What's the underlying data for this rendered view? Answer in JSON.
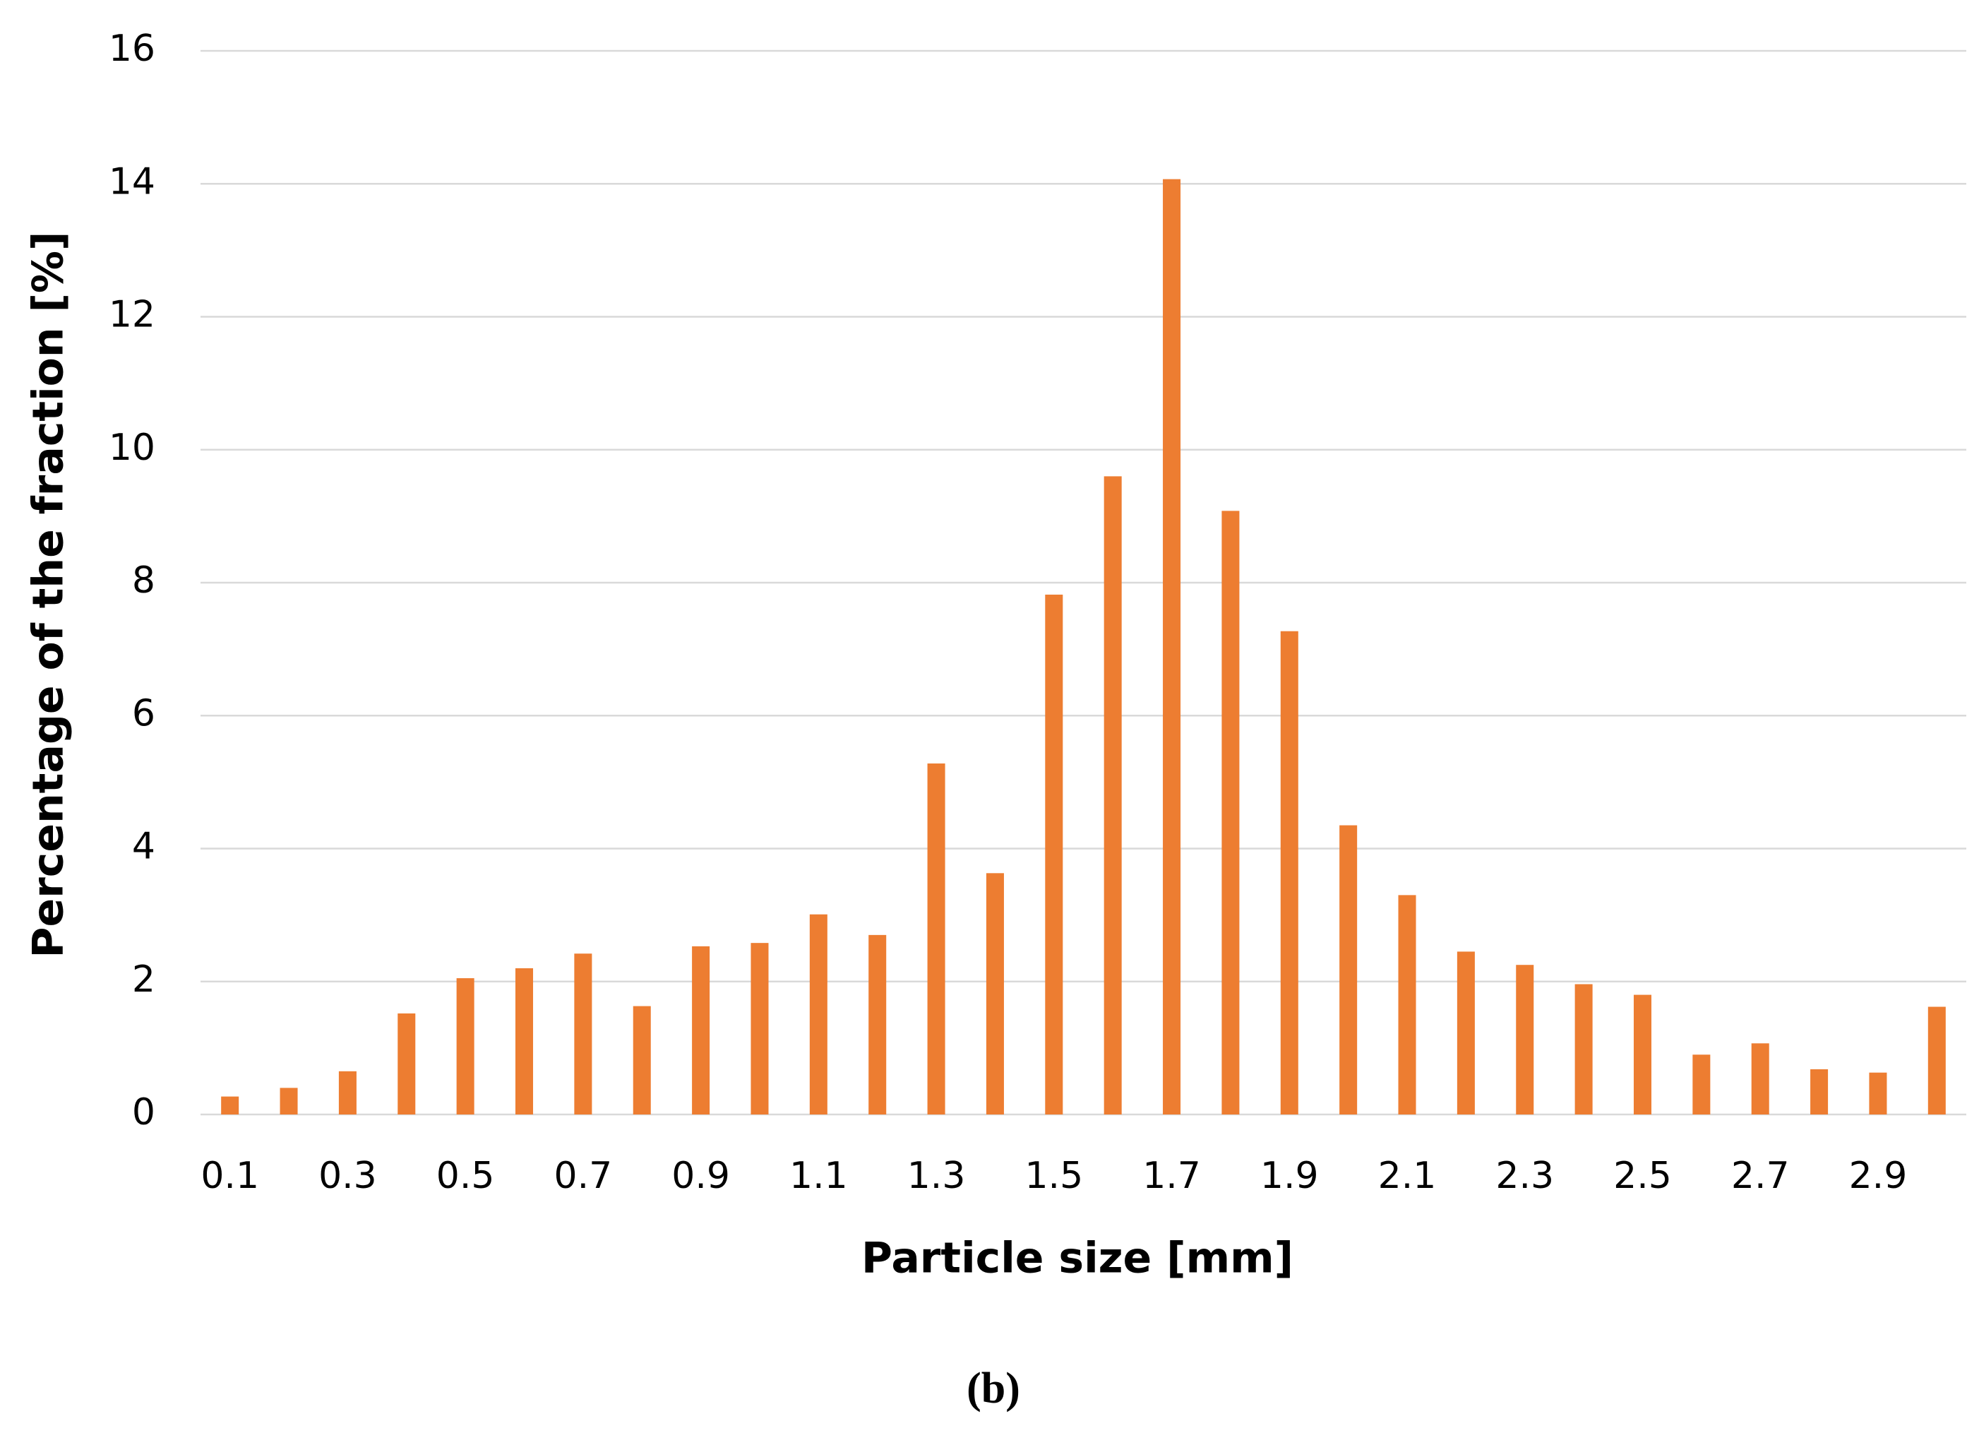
{
  "chart_data": {
    "type": "bar",
    "x_label": "Particle size [mm]",
    "y_label": "Percentage of the fraction [%]",
    "caption": "(b)",
    "categories": [
      "0.1",
      null,
      "0.3",
      null,
      "0.5",
      null,
      "0.7",
      null,
      "0.9",
      null,
      "1.1",
      null,
      "1.3",
      null,
      "1.5",
      null,
      "1.7",
      null,
      "1.9",
      null,
      "2.1",
      null,
      "2.3",
      null,
      "2.5",
      null,
      "2.7",
      null,
      "2.9",
      null
    ],
    "values": [
      0.27,
      0.4,
      0.65,
      1.52,
      2.05,
      2.2,
      2.42,
      1.63,
      2.53,
      2.58,
      3.01,
      2.7,
      5.28,
      3.63,
      7.82,
      9.6,
      14.07,
      9.08,
      7.27,
      4.35,
      3.3,
      2.45,
      2.25,
      1.96,
      1.8,
      0.9,
      1.07,
      0.68,
      0.63,
      1.62
    ],
    "color": "#ed7d31",
    "ylim": [
      0,
      16
    ],
    "yticks": [
      0,
      2,
      4,
      6,
      8,
      10,
      12,
      14,
      16
    ],
    "grid": true
  }
}
